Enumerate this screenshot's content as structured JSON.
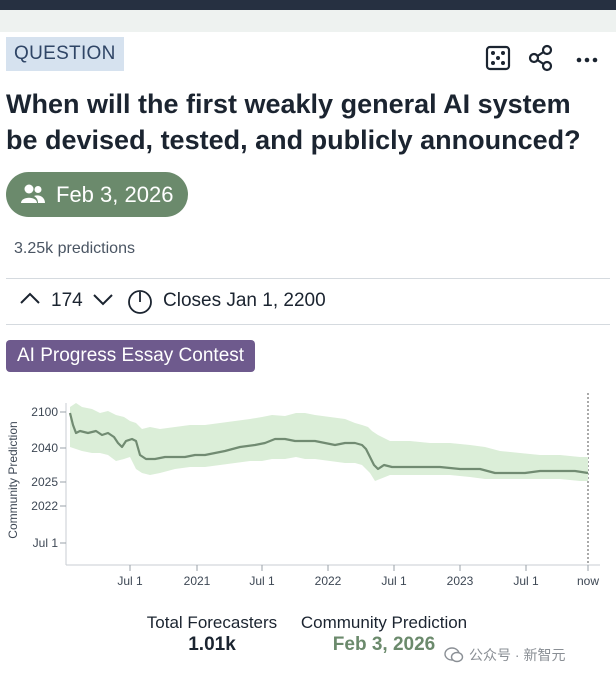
{
  "badge": "QUESTION",
  "title": "When will the first weakly general AI system be devised, tested, and publicly announced?",
  "prediction_pill": "Feb 3, 2026",
  "predictions_count": "3.25k predictions",
  "vote_count": "174",
  "closes": "Closes Jan 1, 2200",
  "tag": "AI Progress Essay Contest",
  "icons": {
    "dice": "dice-icon",
    "share": "share-icon",
    "more": "more-icon",
    "users": "users-icon",
    "upvote": "chevron-up-icon",
    "downvote": "chevron-down-icon",
    "clock": "clock-icon"
  },
  "colors": {
    "accent_green": "#6b8a6c",
    "tag_purple": "#6e5a8d",
    "badge_bg": "#d6e2ef",
    "band": "#dbeed8",
    "line": "#718b72"
  },
  "chart_data": {
    "type": "area",
    "ylabel": "Community Prediction",
    "yticks": [
      "2100",
      "2040",
      "2025",
      "2022",
      "Jul 1"
    ],
    "xticks": [
      "Jul 1",
      "2021",
      "Jul 1",
      "2022",
      "Jul 1",
      "2023",
      "Jul 1",
      "now"
    ],
    "series": [
      {
        "x": [
          "2020-03",
          "2020-04",
          "2020-05",
          "2020-06",
          "2020-07",
          "2020-08",
          "2020-09",
          "2020-11",
          "2021-01",
          "2021-03",
          "2021-05",
          "2021-07",
          "2021-09",
          "2021-11",
          "2022-01",
          "2022-03",
          "2022-05",
          "2022-07",
          "2022-09",
          "2022-11",
          "2023-01",
          "2023-03",
          "2023-05",
          "2023-07",
          "2023-09",
          "now"
        ],
        "y": [
          "2070",
          "2060",
          "2052",
          "2045",
          "2040",
          "2032",
          "2031",
          "2032",
          "2034",
          "2036",
          "2039",
          "2043",
          "2045",
          "2044",
          "2042",
          "2040",
          "2040",
          "2029",
          "2028",
          "2027",
          "2026",
          "2025",
          "2024",
          "2025",
          "2026",
          "2026"
        ]
      }
    ]
  },
  "footer": {
    "total_label": "Total Forecasters",
    "total_value": "1.01k",
    "community_label": "Community Prediction",
    "community_value": "Feb 3, 2026"
  },
  "watermark": "公众号 · 新智元"
}
